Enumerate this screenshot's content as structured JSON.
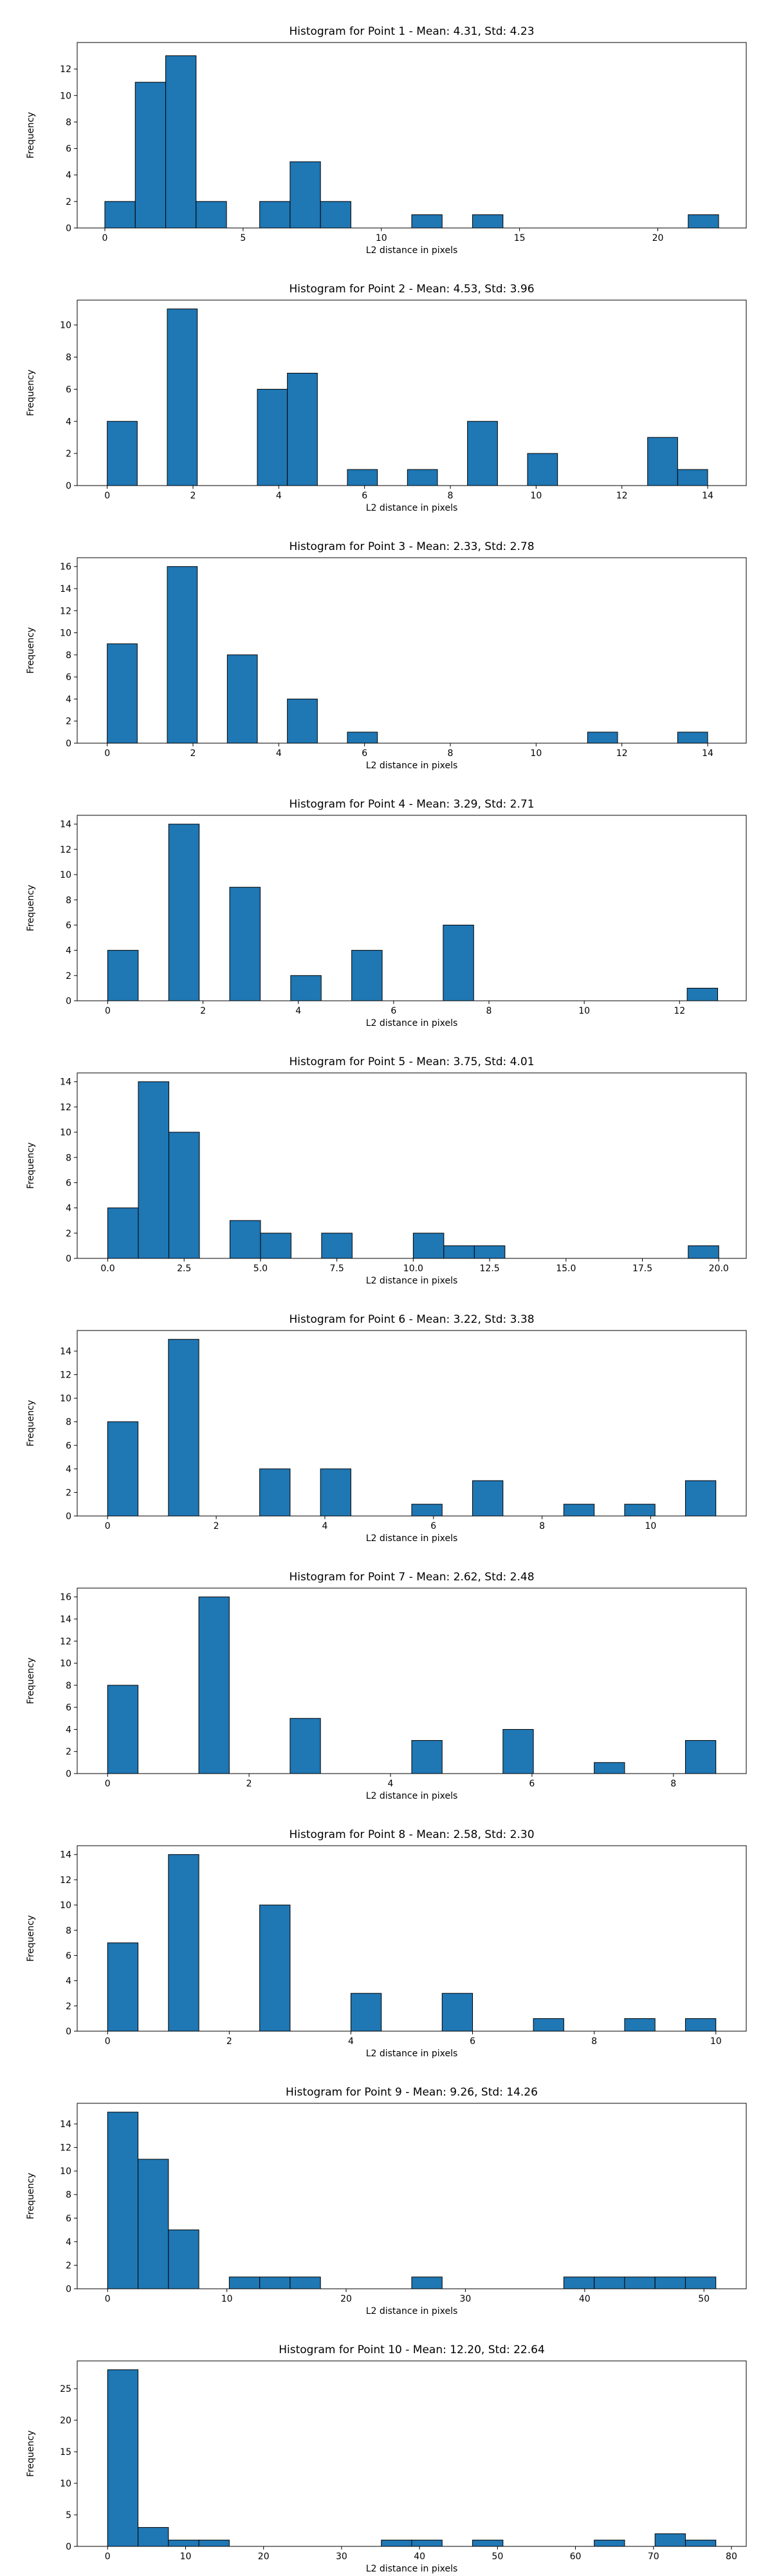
{
  "colors": {
    "bar": "#1f77b4",
    "edge": "#000000",
    "axis": "#000000"
  },
  "chart_data": [
    {
      "type": "bar",
      "title": "Histogram for Point 1 - Mean: 4.31, Std: 4.23",
      "xlabel": "L2 distance in pixels",
      "ylabel": "Frequency",
      "xlim": [
        -1.0,
        23.2
      ],
      "ylim": [
        0,
        14
      ],
      "xticks": [
        0,
        5,
        10,
        15,
        20
      ],
      "xtick_labels": [
        "0",
        "5",
        "10",
        "15",
        "20"
      ],
      "yticks": [
        0,
        2,
        4,
        6,
        8,
        10,
        12
      ],
      "ytick_labels": [
        "0",
        "2",
        "4",
        "6",
        "8",
        "10",
        "12"
      ],
      "bins": [
        {
          "x0": 0.0,
          "x1": 1.1,
          "count": 2
        },
        {
          "x0": 1.1,
          "x1": 2.2,
          "count": 11
        },
        {
          "x0": 2.2,
          "x1": 3.3,
          "count": 13
        },
        {
          "x0": 3.3,
          "x1": 4.4,
          "count": 2
        },
        {
          "x0": 5.6,
          "x1": 6.7,
          "count": 2
        },
        {
          "x0": 6.7,
          "x1": 7.8,
          "count": 5
        },
        {
          "x0": 7.8,
          "x1": 8.9,
          "count": 2
        },
        {
          "x0": 11.1,
          "x1": 12.2,
          "count": 1
        },
        {
          "x0": 13.3,
          "x1": 14.4,
          "count": 1
        },
        {
          "x0": 21.1,
          "x1": 22.2,
          "count": 1
        }
      ]
    },
    {
      "type": "bar",
      "title": "Histogram for Point 2 - Mean: 4.53, Std: 3.96",
      "xlabel": "L2 distance in pixels",
      "ylabel": "Frequency",
      "xlim": [
        -0.7,
        14.9
      ],
      "ylim": [
        0,
        11.55
      ],
      "xticks": [
        0,
        2,
        4,
        6,
        8,
        10,
        12,
        14
      ],
      "xtick_labels": [
        "0",
        "2",
        "4",
        "6",
        "8",
        "10",
        "12",
        "14"
      ],
      "yticks": [
        0,
        2,
        4,
        6,
        8,
        10
      ],
      "ytick_labels": [
        "0",
        "2",
        "4",
        "6",
        "8",
        "10"
      ],
      "bins": [
        {
          "x0": 0.0,
          "x1": 0.7,
          "count": 4
        },
        {
          "x0": 1.4,
          "x1": 2.1,
          "count": 11
        },
        {
          "x0": 3.5,
          "x1": 4.2,
          "count": 6
        },
        {
          "x0": 4.2,
          "x1": 4.9,
          "count": 7
        },
        {
          "x0": 5.6,
          "x1": 6.3,
          "count": 1
        },
        {
          "x0": 7.0,
          "x1": 7.7,
          "count": 1
        },
        {
          "x0": 8.4,
          "x1": 9.1,
          "count": 4
        },
        {
          "x0": 9.8,
          "x1": 10.5,
          "count": 2
        },
        {
          "x0": 12.6,
          "x1": 13.3,
          "count": 3
        },
        {
          "x0": 13.3,
          "x1": 14.0,
          "count": 1
        }
      ]
    },
    {
      "type": "bar",
      "title": "Histogram for Point 3 - Mean: 2.33, Std: 2.78",
      "xlabel": "L2 distance in pixels",
      "ylabel": "Frequency",
      "xlim": [
        -0.7,
        14.9
      ],
      "ylim": [
        0,
        16.8
      ],
      "xticks": [
        0,
        2,
        4,
        6,
        8,
        10,
        12,
        14
      ],
      "xtick_labels": [
        "0",
        "2",
        "4",
        "6",
        "8",
        "10",
        "12",
        "14"
      ],
      "yticks": [
        0,
        2,
        4,
        6,
        8,
        10,
        12,
        14,
        16
      ],
      "ytick_labels": [
        "0",
        "2",
        "4",
        "6",
        "8",
        "10",
        "12",
        "14",
        "16"
      ],
      "bins": [
        {
          "x0": 0.0,
          "x1": 0.7,
          "count": 9
        },
        {
          "x0": 1.4,
          "x1": 2.1,
          "count": 16
        },
        {
          "x0": 2.8,
          "x1": 3.5,
          "count": 8
        },
        {
          "x0": 4.2,
          "x1": 4.9,
          "count": 4
        },
        {
          "x0": 5.6,
          "x1": 6.3,
          "count": 1
        },
        {
          "x0": 11.2,
          "x1": 11.9,
          "count": 1
        },
        {
          "x0": 13.3,
          "x1": 14.0,
          "count": 1
        }
      ]
    },
    {
      "type": "bar",
      "title": "Histogram for Point 4 - Mean: 3.29, Std: 2.71",
      "xlabel": "L2 distance in pixels",
      "ylabel": "Frequency",
      "xlim": [
        -0.64,
        13.4
      ],
      "ylim": [
        0,
        14.7
      ],
      "xticks": [
        0,
        2,
        4,
        6,
        8,
        10,
        12
      ],
      "xtick_labels": [
        "0",
        "2",
        "4",
        "6",
        "8",
        "10",
        "12"
      ],
      "yticks": [
        0,
        2,
        4,
        6,
        8,
        10,
        12,
        14
      ],
      "ytick_labels": [
        "0",
        "2",
        "4",
        "6",
        "8",
        "10",
        "12",
        "14"
      ],
      "bins": [
        {
          "x0": 0.0,
          "x1": 0.64,
          "count": 4
        },
        {
          "x0": 1.28,
          "x1": 1.92,
          "count": 14
        },
        {
          "x0": 2.56,
          "x1": 3.2,
          "count": 9
        },
        {
          "x0": 3.84,
          "x1": 4.48,
          "count": 2
        },
        {
          "x0": 5.12,
          "x1": 5.76,
          "count": 4
        },
        {
          "x0": 7.04,
          "x1": 7.68,
          "count": 6
        },
        {
          "x0": 12.16,
          "x1": 12.8,
          "count": 1
        }
      ]
    },
    {
      "type": "bar",
      "title": "Histogram for Point 5 - Mean: 3.75, Std: 4.01",
      "xlabel": "L2 distance in pixels",
      "ylabel": "Frequency",
      "xlim": [
        -1.0,
        20.9
      ],
      "ylim": [
        0,
        14.7
      ],
      "xticks": [
        0,
        2.5,
        5,
        7.5,
        10,
        12.5,
        15,
        17.5,
        20
      ],
      "xtick_labels": [
        "0.0",
        "2.5",
        "5.0",
        "7.5",
        "10.0",
        "12.5",
        "15.0",
        "17.5",
        "20.0"
      ],
      "yticks": [
        0,
        2,
        4,
        6,
        8,
        10,
        12,
        14
      ],
      "ytick_labels": [
        "0",
        "2",
        "4",
        "6",
        "8",
        "10",
        "12",
        "14"
      ],
      "bins": [
        {
          "x0": 0.0,
          "x1": 1.0,
          "count": 4
        },
        {
          "x0": 1.0,
          "x1": 2.0,
          "count": 14
        },
        {
          "x0": 2.0,
          "x1": 3.0,
          "count": 10
        },
        {
          "x0": 4.0,
          "x1": 5.0,
          "count": 3
        },
        {
          "x0": 5.0,
          "x1": 6.0,
          "count": 2
        },
        {
          "x0": 7.0,
          "x1": 8.0,
          "count": 2
        },
        {
          "x0": 10.0,
          "x1": 11.0,
          "count": 2
        },
        {
          "x0": 11.0,
          "x1": 12.0,
          "count": 1
        },
        {
          "x0": 12.0,
          "x1": 13.0,
          "count": 1
        },
        {
          "x0": 19.0,
          "x1": 20.0,
          "count": 1
        }
      ]
    },
    {
      "type": "bar",
      "title": "Histogram for Point 6 - Mean: 3.22, Std: 3.38",
      "xlabel": "L2 distance in pixels",
      "ylabel": "Frequency",
      "xlim": [
        -0.56,
        11.76
      ],
      "ylim": [
        0,
        15.75
      ],
      "xticks": [
        0,
        2,
        4,
        6,
        8,
        10
      ],
      "xtick_labels": [
        "0",
        "2",
        "4",
        "6",
        "8",
        "10"
      ],
      "yticks": [
        0,
        2,
        4,
        6,
        8,
        10,
        12,
        14
      ],
      "ytick_labels": [
        "0",
        "2",
        "4",
        "6",
        "8",
        "10",
        "12",
        "14"
      ],
      "bins": [
        {
          "x0": 0.0,
          "x1": 0.56,
          "count": 8
        },
        {
          "x0": 1.12,
          "x1": 1.68,
          "count": 15
        },
        {
          "x0": 2.8,
          "x1": 3.36,
          "count": 4
        },
        {
          "x0": 3.92,
          "x1": 4.48,
          "count": 4
        },
        {
          "x0": 5.6,
          "x1": 6.16,
          "count": 1
        },
        {
          "x0": 6.72,
          "x1": 7.28,
          "count": 3
        },
        {
          "x0": 8.4,
          "x1": 8.96,
          "count": 1
        },
        {
          "x0": 9.52,
          "x1": 10.08,
          "count": 1
        },
        {
          "x0": 10.64,
          "x1": 11.2,
          "count": 3
        }
      ]
    },
    {
      "type": "bar",
      "title": "Histogram for Point 7 - Mean: 2.62, Std: 2.48",
      "xlabel": "L2 distance in pixels",
      "ylabel": "Frequency",
      "xlim": [
        -0.43,
        9.03
      ],
      "ylim": [
        0,
        16.8
      ],
      "xticks": [
        0,
        2,
        4,
        6,
        8
      ],
      "xtick_labels": [
        "0",
        "2",
        "4",
        "6",
        "8"
      ],
      "yticks": [
        0,
        2,
        4,
        6,
        8,
        10,
        12,
        14,
        16
      ],
      "ytick_labels": [
        "0",
        "2",
        "4",
        "6",
        "8",
        "10",
        "12",
        "14",
        "16"
      ],
      "bins": [
        {
          "x0": 0.0,
          "x1": 0.43,
          "count": 8
        },
        {
          "x0": 1.29,
          "x1": 1.72,
          "count": 16
        },
        {
          "x0": 2.58,
          "x1": 3.01,
          "count": 5
        },
        {
          "x0": 4.3,
          "x1": 4.73,
          "count": 3
        },
        {
          "x0": 5.59,
          "x1": 6.02,
          "count": 4
        },
        {
          "x0": 6.88,
          "x1": 7.31,
          "count": 1
        },
        {
          "x0": 8.17,
          "x1": 8.6,
          "count": 3
        }
      ]
    },
    {
      "type": "bar",
      "title": "Histogram for Point 8 - Mean: 2.58, Std: 2.30",
      "xlabel": "L2 distance in pixels",
      "ylabel": "Frequency",
      "xlim": [
        -0.5,
        10.5
      ],
      "ylim": [
        0,
        14.7
      ],
      "xticks": [
        0,
        2,
        4,
        6,
        8,
        10
      ],
      "xtick_labels": [
        "0",
        "2",
        "4",
        "6",
        "8",
        "10"
      ],
      "yticks": [
        0,
        2,
        4,
        6,
        8,
        10,
        12,
        14
      ],
      "ytick_labels": [
        "0",
        "2",
        "4",
        "6",
        "8",
        "10",
        "12",
        "14"
      ],
      "bins": [
        {
          "x0": 0.0,
          "x1": 0.5,
          "count": 7
        },
        {
          "x0": 1.0,
          "x1": 1.5,
          "count": 14
        },
        {
          "x0": 2.5,
          "x1": 3.0,
          "count": 10
        },
        {
          "x0": 4.0,
          "x1": 4.5,
          "count": 3
        },
        {
          "x0": 5.5,
          "x1": 6.0,
          "count": 3
        },
        {
          "x0": 7.0,
          "x1": 7.5,
          "count": 1
        },
        {
          "x0": 8.5,
          "x1": 9.0,
          "count": 1
        },
        {
          "x0": 9.5,
          "x1": 10.0,
          "count": 1
        }
      ]
    },
    {
      "type": "bar",
      "title": "Histogram for Point 9 - Mean: 9.26, Std: 14.26",
      "xlabel": "L2 distance in pixels",
      "ylabel": "Frequency",
      "xlim": [
        -2.55,
        53.55
      ],
      "ylim": [
        0,
        15.75
      ],
      "xticks": [
        0,
        10,
        20,
        30,
        40,
        50
      ],
      "xtick_labels": [
        "0",
        "10",
        "20",
        "30",
        "40",
        "50"
      ],
      "yticks": [
        0,
        2,
        4,
        6,
        8,
        10,
        12,
        14
      ],
      "ytick_labels": [
        "0",
        "2",
        "4",
        "6",
        "8",
        "10",
        "12",
        "14"
      ],
      "bins": [
        {
          "x0": 0.0,
          "x1": 2.55,
          "count": 15
        },
        {
          "x0": 2.55,
          "x1": 5.1,
          "count": 11
        },
        {
          "x0": 5.1,
          "x1": 7.65,
          "count": 5
        },
        {
          "x0": 10.2,
          "x1": 12.75,
          "count": 1
        },
        {
          "x0": 12.75,
          "x1": 15.3,
          "count": 1
        },
        {
          "x0": 15.3,
          "x1": 17.85,
          "count": 1
        },
        {
          "x0": 25.5,
          "x1": 28.05,
          "count": 1
        },
        {
          "x0": 38.25,
          "x1": 40.8,
          "count": 1
        },
        {
          "x0": 40.8,
          "x1": 43.35,
          "count": 1
        },
        {
          "x0": 43.35,
          "x1": 45.9,
          "count": 1
        },
        {
          "x0": 45.9,
          "x1": 48.45,
          "count": 1
        },
        {
          "x0": 48.45,
          "x1": 51.0,
          "count": 1
        }
      ]
    },
    {
      "type": "bar",
      "title": "Histogram for Point 10 - Mean: 12.20, Std: 22.64",
      "xlabel": "L2 distance in pixels",
      "ylabel": "Frequency",
      "xlim": [
        -3.9,
        81.9
      ],
      "ylim": [
        0,
        29.4
      ],
      "xticks": [
        0,
        10,
        20,
        30,
        40,
        50,
        60,
        70,
        80
      ],
      "xtick_labels": [
        "0",
        "10",
        "20",
        "30",
        "40",
        "50",
        "60",
        "70",
        "80"
      ],
      "yticks": [
        0,
        5,
        10,
        15,
        20,
        25
      ],
      "ytick_labels": [
        "0",
        "5",
        "10",
        "15",
        "20",
        "25"
      ],
      "bins": [
        {
          "x0": 0.0,
          "x1": 3.9,
          "count": 28
        },
        {
          "x0": 3.9,
          "x1": 7.8,
          "count": 3
        },
        {
          "x0": 7.8,
          "x1": 11.7,
          "count": 1
        },
        {
          "x0": 11.7,
          "x1": 15.6,
          "count": 1
        },
        {
          "x0": 35.1,
          "x1": 39.0,
          "count": 1
        },
        {
          "x0": 39.0,
          "x1": 42.9,
          "count": 1
        },
        {
          "x0": 46.8,
          "x1": 50.7,
          "count": 1
        },
        {
          "x0": 62.4,
          "x1": 66.3,
          "count": 1
        },
        {
          "x0": 70.2,
          "x1": 74.1,
          "count": 2
        },
        {
          "x0": 74.1,
          "x1": 78.0,
          "count": 1
        }
      ]
    }
  ]
}
